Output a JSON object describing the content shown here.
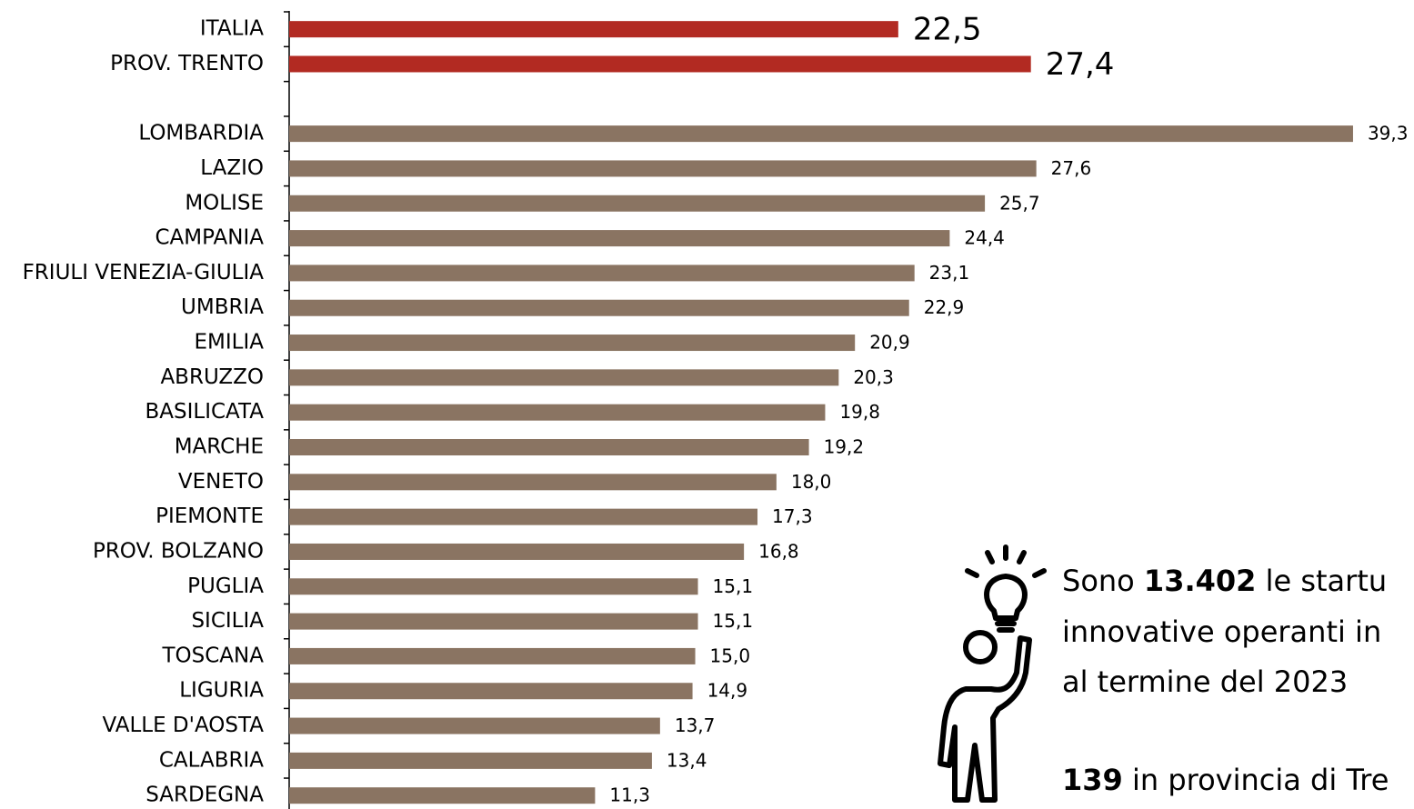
{
  "chart_data": {
    "type": "bar",
    "orientation": "horizontal",
    "categories": [
      "ITALIA",
      "PROV. TRENTO",
      null,
      "LOMBARDIA",
      "LAZIO",
      "MOLISE",
      "CAMPANIA",
      "FRIULI VENEZIA-GIULIA",
      "UMBRIA",
      "EMILIA",
      "ABRUZZO",
      "BASILICATA",
      "MARCHE",
      "VENETO",
      "PIEMONTE",
      "PROV. BOLZANO",
      "PUGLIA",
      "SICILIA",
      "TOSCANA",
      "LIGURIA",
      "VALLE D'AOSTA",
      "CALABRIA",
      "SARDEGNA"
    ],
    "values": [
      22.5,
      27.4,
      null,
      39.3,
      27.6,
      25.7,
      24.4,
      23.1,
      22.9,
      20.9,
      20.3,
      19.8,
      19.2,
      18.0,
      17.3,
      16.8,
      15.1,
      15.1,
      15.0,
      14.9,
      13.7,
      13.4,
      11.3
    ],
    "value_labels": [
      "22,5",
      "27,4",
      null,
      "39,3",
      "27,6",
      "25,7",
      "24,4",
      "23,1",
      "22,9",
      "20,9",
      "20,3",
      "19,8",
      "19,2",
      "18,0",
      "17,3",
      "16,8",
      "15,1",
      "15,1",
      "15,0",
      "14,9",
      "13,7",
      "13,4",
      "11,3"
    ],
    "colors": [
      "#b22a22",
      "#b22a22",
      null,
      "#8a7462",
      "#8a7462",
      "#8a7462",
      "#8a7462",
      "#8a7462",
      "#8a7462",
      "#8a7462",
      "#8a7462",
      "#8a7462",
      "#8a7462",
      "#8a7462",
      "#8a7462",
      "#8a7462",
      "#8a7462",
      "#8a7462",
      "#8a7462",
      "#8a7462",
      "#8a7462",
      "#8a7462",
      "#8a7462"
    ],
    "xlim": [
      0,
      40
    ],
    "annotation": {
      "line1": [
        "Sono ",
        "13.402",
        " le startu"
      ],
      "line2": "innovative operanti in",
      "line3": "al termine del 2023",
      "line4": [
        "139",
        " in provincia di Tre"
      ]
    }
  }
}
